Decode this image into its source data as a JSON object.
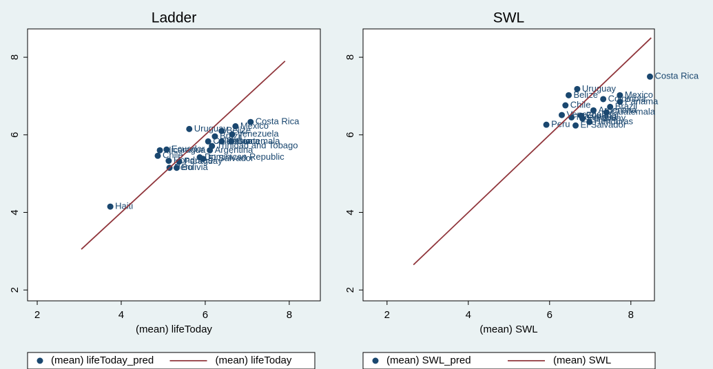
{
  "chart_data": [
    {
      "type": "scatter",
      "title": "Ladder",
      "x_label": "(mean) lifeToday",
      "xlim": [
        1.77,
        8.74
      ],
      "ylim": [
        1.72,
        8.73
      ],
      "xticks": [
        2,
        4,
        6,
        8
      ],
      "yticks": [
        2,
        4,
        6,
        8
      ],
      "series": [
        {
          "name": "(mean) lifeToday_pred",
          "color": "#1a476f",
          "type": "scatter",
          "x": [
            3.74,
            7.08,
            6.72,
            5.62,
            6.64,
            6.39,
            6.23,
            6.39,
            6.62,
            6.16,
            6.07,
            6.11,
            5.08,
            4.92,
            4.87,
            5.87,
            5.95,
            5.13,
            5.38,
            5.32,
            5.15
          ],
          "values": [
            4.15,
            6.33,
            6.22,
            6.15,
            6.01,
            6.1,
            5.96,
            5.83,
            5.83,
            5.71,
            5.83,
            5.6,
            5.62,
            5.6,
            5.46,
            5.42,
            5.38,
            5.33,
            5.31,
            5.15,
            5.15
          ],
          "point_labels": [
            "Haiti",
            "Costa Rica",
            "Mexico",
            "Uruguay",
            "Venezuela",
            "Belize",
            "Brazil",
            "Panama",
            "Guatemala",
            "Trinidad and Tobago",
            "Colombia",
            "Argentina",
            "Ecuador",
            "Nicaragua",
            "Chile",
            "Dominican Republic",
            "El Salvador",
            "Honduras",
            "Paraguay",
            "Bolivia",
            "Peru"
          ]
        },
        {
          "name": "(mean) lifeToday",
          "color": "#90353b",
          "type": "line",
          "x": [
            3.05,
            7.9
          ],
          "values": [
            3.05,
            7.9
          ]
        }
      ]
    },
    {
      "type": "scatter",
      "title": "SWL",
      "x_label": "(mean) SWL",
      "xlim": [
        1.41,
        8.58
      ],
      "ylim": [
        1.72,
        8.73
      ],
      "xticks": [
        2,
        4,
        6,
        8
      ],
      "yticks": [
        2,
        4,
        6,
        8
      ],
      "series": [
        {
          "name": "(mean) SWL_pred",
          "color": "#1a476f",
          "type": "scatter",
          "x": [
            8.47,
            6.68,
            7.73,
            6.47,
            7.32,
            7.73,
            6.39,
            7.49,
            7.08,
            7.4,
            6.78,
            6.81,
            6.3,
            6.98,
            6.54,
            5.92,
            6.64
          ],
          "values": [
            7.5,
            7.18,
            7.02,
            7.02,
            6.92,
            6.85,
            6.76,
            6.72,
            6.63,
            6.58,
            6.49,
            6.42,
            6.51,
            6.33,
            6.45,
            6.26,
            6.24
          ],
          "point_labels": [
            "Costa Rica",
            "Uruguay",
            "Mexico",
            "Belize",
            "Colombia",
            "Panama",
            "Chile",
            "Brazil",
            "Argentina",
            "Guatemala",
            "Ecuador",
            "Paraguay",
            "Venezuela",
            "Honduras",
            "Nicaragua",
            "Peru",
            "El Salvador"
          ]
        },
        {
          "name": "(mean) SWL",
          "color": "#90353b",
          "type": "line",
          "x": [
            2.65,
            8.5
          ],
          "values": [
            2.65,
            8.5
          ]
        }
      ]
    }
  ]
}
